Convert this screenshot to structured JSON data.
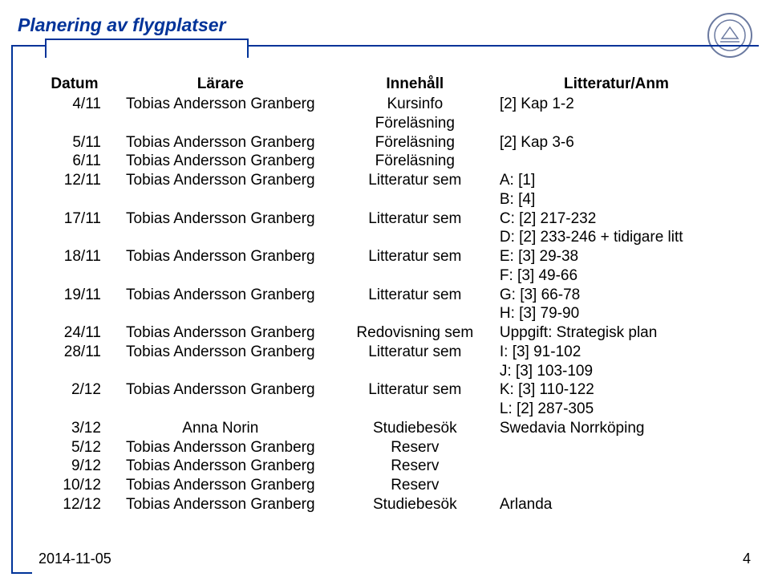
{
  "title": "Planering av flygplatser",
  "footer": {
    "date": "2014-11-05",
    "page": "4"
  },
  "table": {
    "headers": {
      "date": "Datum",
      "teacher": "Lärare",
      "content": "Innehåll",
      "lit": "Litteratur/Anm"
    },
    "rows": [
      {
        "date": "4/11",
        "teacher": "Tobias Andersson Granberg",
        "content": "Kursinfo",
        "lit": "[2] Kap 1-2"
      },
      {
        "date": "",
        "teacher": "",
        "content": "Föreläsning",
        "lit": ""
      },
      {
        "date": "5/11",
        "teacher": "Tobias Andersson Granberg",
        "content": "Föreläsning",
        "lit": "[2] Kap 3-6"
      },
      {
        "date": "6/11",
        "teacher": "Tobias Andersson Granberg",
        "content": "Föreläsning",
        "lit": ""
      },
      {
        "date": "12/11",
        "teacher": "Tobias Andersson Granberg",
        "content": "Litteratur sem",
        "lit": "A: [1]"
      },
      {
        "date": "",
        "teacher": "",
        "content": "",
        "lit": "B: [4]"
      },
      {
        "date": "17/11",
        "teacher": "Tobias Andersson Granberg",
        "content": "Litteratur sem",
        "lit": "C: [2] 217-232"
      },
      {
        "date": "",
        "teacher": "",
        "content": "",
        "lit": "D: [2] 233-246 + tidigare litt"
      },
      {
        "date": "18/11",
        "teacher": "Tobias Andersson Granberg",
        "content": "Litteratur sem",
        "lit": "E: [3] 29-38"
      },
      {
        "date": "",
        "teacher": "",
        "content": "",
        "lit": "F: [3] 49-66"
      },
      {
        "date": "19/11",
        "teacher": "Tobias Andersson Granberg",
        "content": "Litteratur sem",
        "lit": "G: [3] 66-78"
      },
      {
        "date": "",
        "teacher": "",
        "content": "",
        "lit": "H: [3] 79-90"
      },
      {
        "date": "24/11",
        "teacher": "Tobias Andersson Granberg",
        "content": "Redovisning sem",
        "lit": "Uppgift: Strategisk plan"
      },
      {
        "date": "28/11",
        "teacher": "Tobias Andersson Granberg",
        "content": "Litteratur sem",
        "lit": "I: [3] 91-102"
      },
      {
        "date": "",
        "teacher": "",
        "content": "",
        "lit": "J: [3] 103-109"
      },
      {
        "date": "2/12",
        "teacher": "Tobias Andersson Granberg",
        "content": "Litteratur sem",
        "lit": "K: [3] 110-122"
      },
      {
        "date": "",
        "teacher": "",
        "content": "",
        "lit": "L: [2] 287-305"
      },
      {
        "date": "3/12",
        "teacher": "Anna Norin",
        "content": "Studiebesök",
        "lit": "Swedavia Norrköping"
      },
      {
        "date": "5/12",
        "teacher": "Tobias Andersson Granberg",
        "content": "Reserv",
        "lit": ""
      },
      {
        "date": "9/12",
        "teacher": "Tobias Andersson Granberg",
        "content": "Reserv",
        "lit": ""
      },
      {
        "date": "10/12",
        "teacher": "Tobias Andersson Granberg",
        "content": "Reserv",
        "lit": ""
      },
      {
        "date": "12/12",
        "teacher": "Tobias Andersson Granberg",
        "content": "Studiebesök",
        "lit": "Arlanda"
      }
    ]
  },
  "colors": {
    "accent": "#003399",
    "text": "#000000",
    "background": "#ffffff",
    "seal_fill": "#ffffff",
    "seal_stroke": "#6b7aa0"
  }
}
